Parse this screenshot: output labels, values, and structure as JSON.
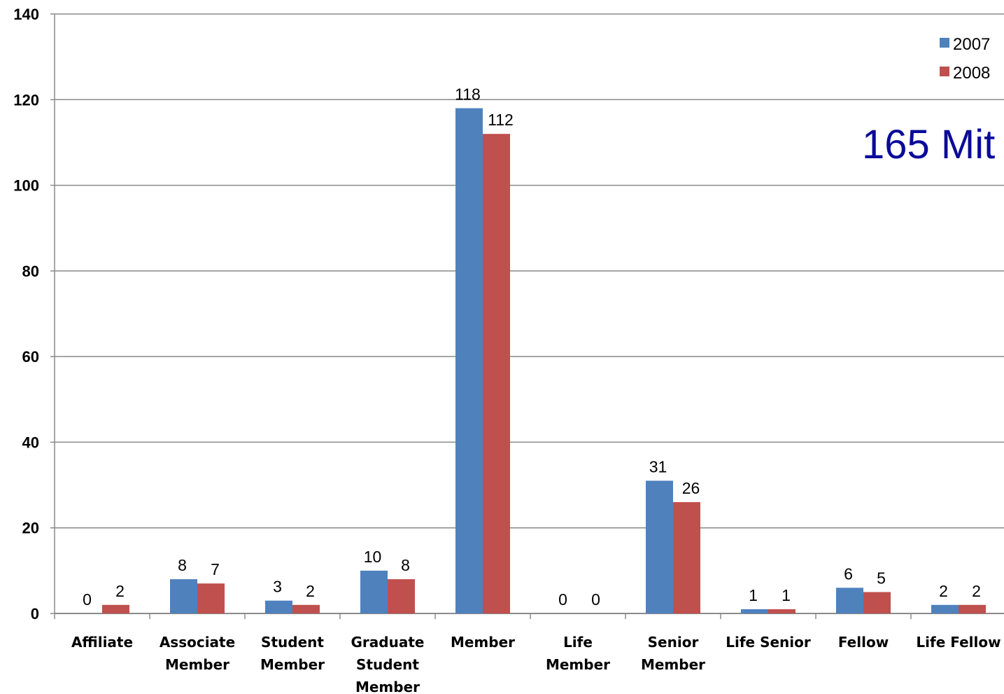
{
  "chart_data": {
    "type": "bar",
    "categories": [
      [
        "Affiliate"
      ],
      [
        "Associate",
        "Member"
      ],
      [
        "Student",
        "Member"
      ],
      [
        "Graduate",
        "Student",
        "Member"
      ],
      [
        "Member"
      ],
      [
        "Life",
        "Member"
      ],
      [
        "Senior",
        "Member"
      ],
      [
        "Life Senior"
      ],
      [
        "Fellow"
      ],
      [
        "Life Fellow"
      ]
    ],
    "series": [
      {
        "name": "2007",
        "color": "#4f81bd",
        "values": [
          0,
          8,
          3,
          10,
          118,
          0,
          31,
          1,
          6,
          2
        ]
      },
      {
        "name": "2008",
        "color": "#c0504d",
        "values": [
          2,
          7,
          2,
          8,
          112,
          0,
          26,
          1,
          5,
          2
        ]
      }
    ],
    "ylim": [
      0,
      140
    ],
    "yticks": [
      0,
      20,
      40,
      60,
      80,
      100,
      120,
      140
    ],
    "title": "",
    "xlabel": "",
    "ylabel": "",
    "grid": true,
    "legend_position": "top-right",
    "data_labels": true
  },
  "overlay_text": "165 Mit"
}
